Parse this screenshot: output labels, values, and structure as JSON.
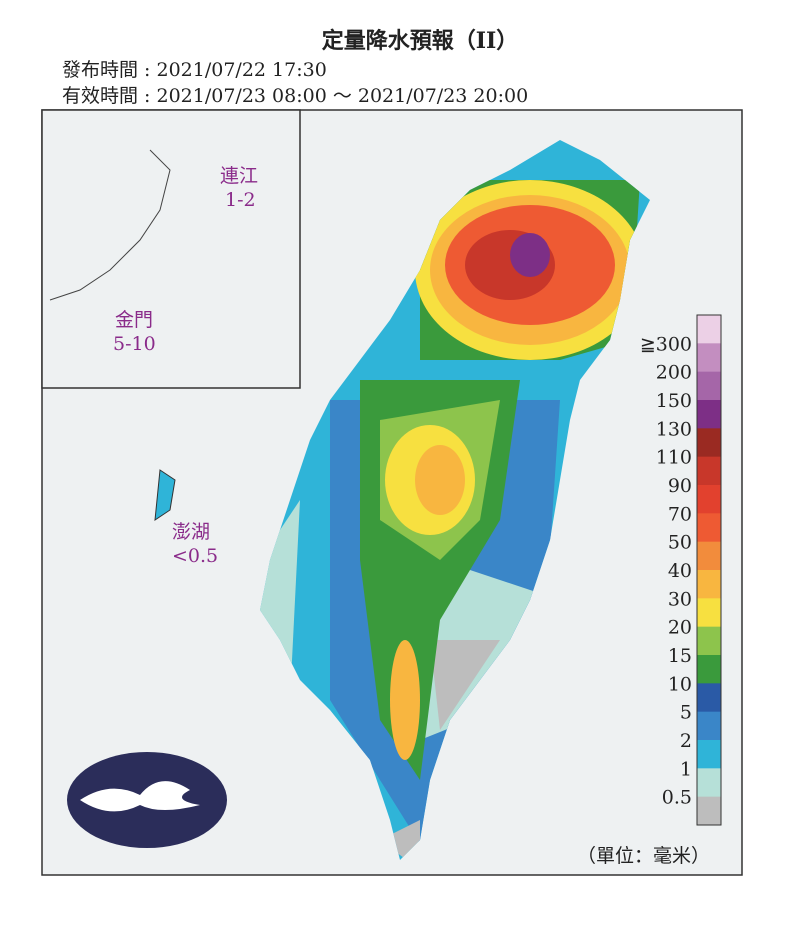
{
  "title": "定量降水預報（II）",
  "issued": "發布時間 : 2021/07/22 17:30",
  "valid": "有效時間 : 2021/07/23 08:00 ～ 2021/07/23 20:00",
  "regions": [
    {
      "name": "連江",
      "range": "1-2"
    },
    {
      "name": "金門",
      "range": "5-10"
    },
    {
      "name": "澎湖",
      "range": "<0.5"
    }
  ],
  "legend": {
    "unit": "（單位：毫米）",
    "labels": [
      "≧300",
      "200",
      "150",
      "130",
      "110",
      "90",
      "70",
      "50",
      "40",
      "30",
      "20",
      "15",
      "10",
      "5",
      "2",
      "1",
      "0.5"
    ],
    "colors": [
      "#ecd0e6",
      "#c38ec0",
      "#a566a8",
      "#7d2f86",
      "#9a2a22",
      "#c8372a",
      "#e2412e",
      "#ee5a33",
      "#f28c3c",
      "#f8b640",
      "#f7e040",
      "#8dc44c",
      "#3a9a3c",
      "#2a5aa6",
      "#3a86c8",
      "#2fb4d8",
      "#b6e0d8",
      "#bdbdbd"
    ]
  }
}
